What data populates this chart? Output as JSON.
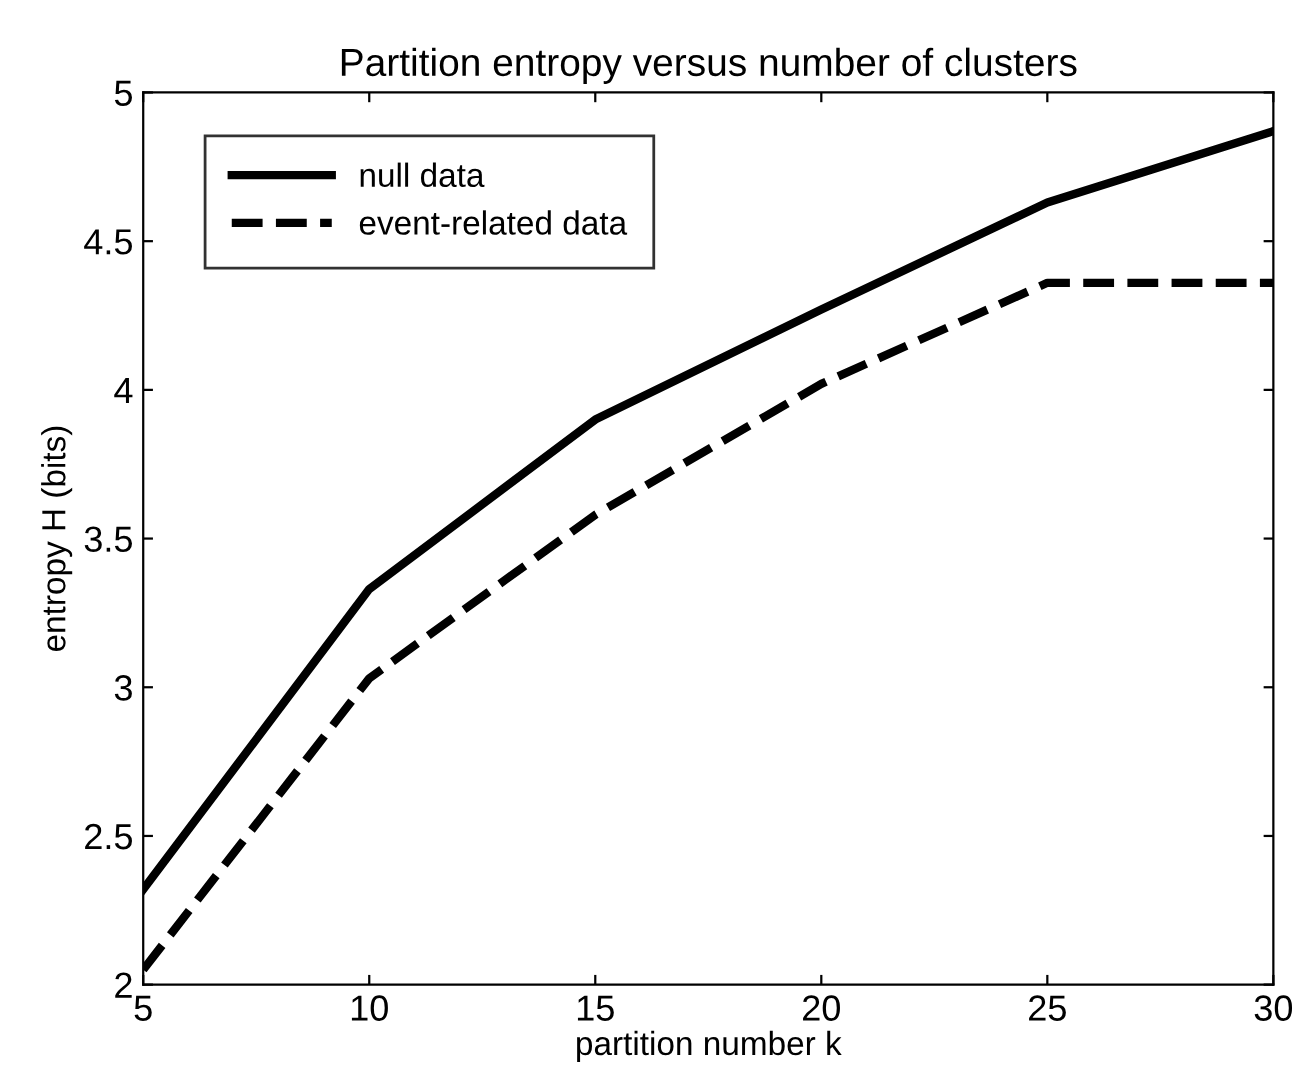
{
  "chart_data": {
    "type": "line",
    "title": "Partition entropy versus number of clusters",
    "xlabel": "partition number k",
    "ylabel": "entropy H (bits)",
    "x": [
      5,
      10,
      15,
      20,
      25,
      30
    ],
    "series": [
      {
        "name": "null data",
        "color": "#000000",
        "line_style": "solid",
        "values": [
          2.32,
          3.33,
          3.9,
          4.27,
          4.63,
          4.87
        ]
      },
      {
        "name": "event-related data",
        "color": "#000000",
        "line_style": "dashed",
        "values": [
          2.05,
          3.03,
          3.58,
          4.02,
          4.36,
          4.36
        ]
      }
    ],
    "xlim": [
      5,
      30
    ],
    "ylim": [
      2,
      5
    ],
    "xticks": [
      5,
      10,
      15,
      20,
      25,
      30
    ],
    "yticks": [
      2,
      2.5,
      3,
      3.5,
      4,
      4.5,
      5
    ],
    "grid": false,
    "legend": "top left",
    "marker": "none"
  }
}
